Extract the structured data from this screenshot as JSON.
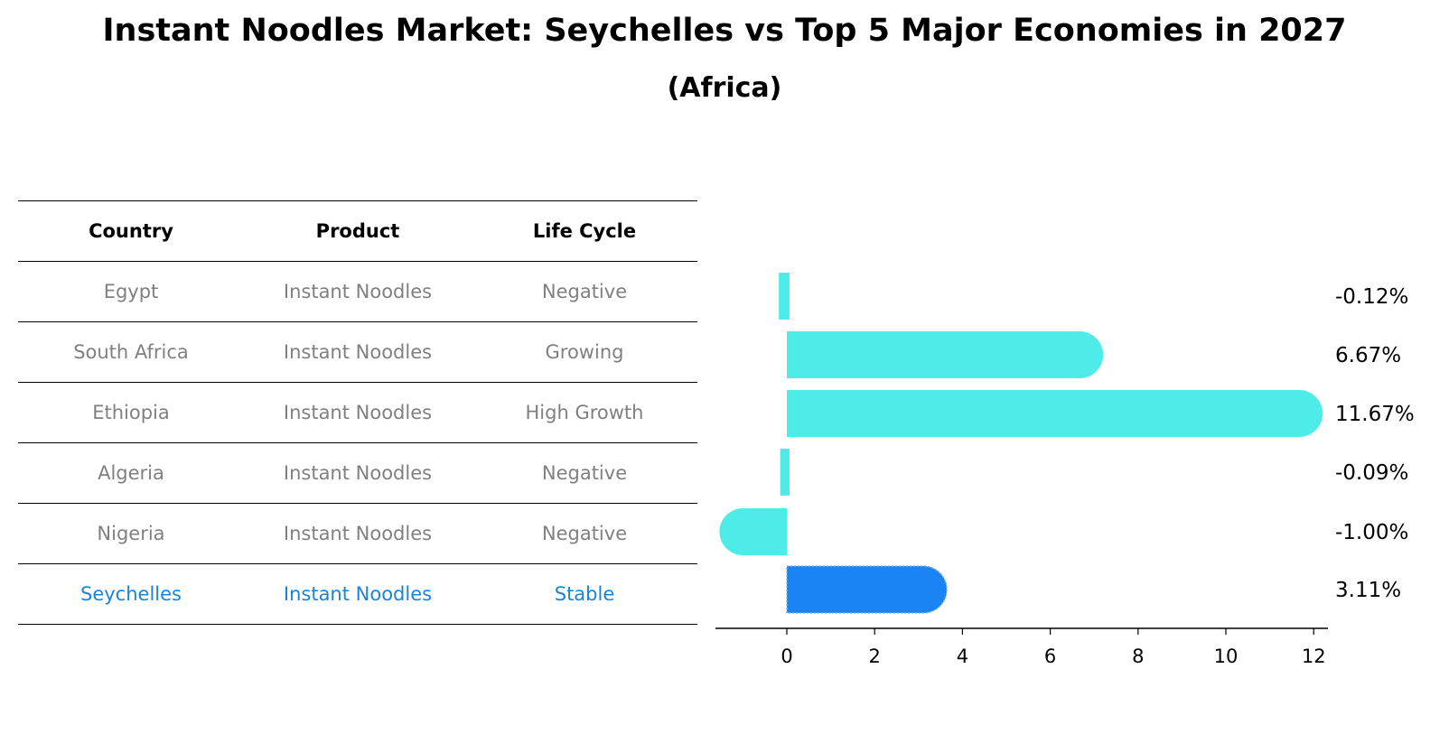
{
  "header": {
    "title": "Instant Noodles Market: Seychelles vs Top 5 Major Economies in 2027",
    "subtitle": "(Africa)"
  },
  "table": {
    "columns": [
      "Country",
      "Product",
      "Life Cycle"
    ],
    "rows": [
      {
        "country": "Egypt",
        "product": "Instant Noodles",
        "life_cycle": "Negative"
      },
      {
        "country": "South Africa",
        "product": "Instant Noodles",
        "life_cycle": "Growing"
      },
      {
        "country": "Ethiopia",
        "product": "Instant Noodles",
        "life_cycle": "High Growth"
      },
      {
        "country": "Algeria",
        "product": "Instant Noodles",
        "life_cycle": "Negative"
      },
      {
        "country": "Nigeria",
        "product": "Instant Noodles",
        "life_cycle": "Negative"
      },
      {
        "country": "Seychelles",
        "product": "Instant Noodles",
        "life_cycle": "Stable"
      }
    ]
  },
  "colors": {
    "bar": "#4dece8",
    "highlight_bar": "#1a84f5",
    "highlight_text": "#1a84d8",
    "muted_text": "#808080"
  },
  "chart_data": {
    "type": "bar",
    "orientation": "horizontal",
    "categories": [
      "Egypt",
      "South Africa",
      "Ethiopia",
      "Algeria",
      "Nigeria",
      "Seychelles"
    ],
    "values": [
      -0.12,
      6.67,
      11.67,
      -0.09,
      -1.0,
      3.11
    ],
    "labels": [
      "-0.12%",
      "6.67%",
      "11.67%",
      "-0.09%",
      "-1.00%",
      "3.11%"
    ],
    "highlight": "Seychelles",
    "xlim": [
      -1.65,
      12.3
    ],
    "xticks": [
      0,
      2,
      4,
      6,
      8,
      10,
      12
    ],
    "grid": false
  }
}
